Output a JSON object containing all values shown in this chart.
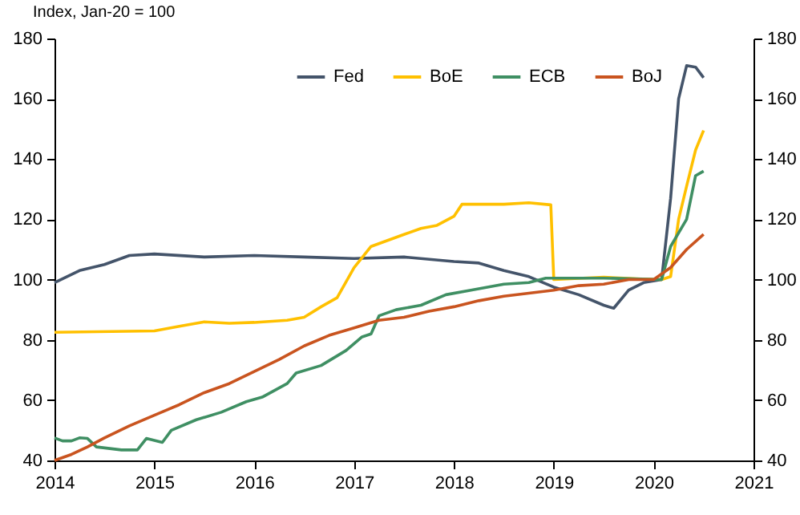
{
  "chart_data": {
    "type": "line",
    "ylabel": "Index, Jan-20 = 100",
    "xlim": [
      2014,
      2021
    ],
    "xticks": [
      2014,
      2015,
      2016,
      2017,
      2018,
      2019,
      2020,
      2021
    ],
    "ylim": [
      40,
      180
    ],
    "yticks": [
      40,
      60,
      80,
      100,
      120,
      140,
      160,
      180
    ],
    "y2lim": [
      40,
      180
    ],
    "y2ticks": [
      40,
      60,
      80,
      100,
      120,
      140,
      160,
      180
    ],
    "legend": "top",
    "grid": false,
    "marker": "none",
    "line_style": "solid",
    "series": [
      {
        "name": "Fed",
        "color": "#44546a",
        "x": [
          2014,
          2014.25,
          2014.5,
          2014.75,
          2015,
          2015.5,
          2016,
          2016.5,
          2017,
          2017.5,
          2018,
          2018.25,
          2018.5,
          2018.75,
          2019,
          2019.25,
          2019.5,
          2019.6,
          2019.75,
          2019.9,
          2020.08,
          2020.17,
          2020.25,
          2020.33,
          2020.42,
          2020.5
        ],
        "values": [
          99,
          103,
          105,
          108,
          108.5,
          107.5,
          108,
          107.5,
          107,
          107.5,
          106,
          105.5,
          103,
          101,
          97.5,
          95,
          91.5,
          90.5,
          96.5,
          99,
          100,
          127,
          160,
          171,
          170.5,
          167
        ]
      },
      {
        "name": "BoE",
        "color": "#ffc000",
        "x": [
          2014,
          2015,
          2015.25,
          2015.5,
          2015.75,
          2016,
          2016.33,
          2016.5,
          2016.67,
          2016.83,
          2017,
          2017.17,
          2017.5,
          2017.67,
          2017.83,
          2018,
          2018.08,
          2018.5,
          2018.75,
          2018.97,
          2019,
          2019.5,
          2019.83,
          2020.08,
          2020.17,
          2020.25,
          2020.33,
          2020.42,
          2020.5
        ],
        "values": [
          82.5,
          83,
          84.5,
          86,
          85.5,
          85.8,
          86.5,
          87.5,
          91,
          94,
          104,
          111,
          115,
          117,
          118,
          121,
          125,
          125,
          125.5,
          124.8,
          100,
          100.8,
          100.3,
          100,
          101,
          120,
          131,
          143,
          149.5
        ]
      },
      {
        "name": "ECB",
        "color": "#3f8f63",
        "x": [
          2014,
          2014.08,
          2014.17,
          2014.25,
          2014.33,
          2014.42,
          2014.67,
          2014.83,
          2014.92,
          2015.08,
          2015.17,
          2015.42,
          2015.67,
          2015.92,
          2016.08,
          2016.33,
          2016.42,
          2016.67,
          2016.92,
          2017.08,
          2017.17,
          2017.25,
          2017.42,
          2017.67,
          2017.92,
          2018.17,
          2018.5,
          2018.75,
          2018.92,
          2019.5,
          2020.08,
          2020.17,
          2020.33,
          2020.42,
          2020.5
        ],
        "values": [
          47.5,
          46.5,
          46.5,
          47.5,
          47.3,
          44.5,
          43.5,
          43.5,
          47.3,
          46,
          50,
          53.5,
          56,
          59.5,
          61,
          65.5,
          69,
          71.5,
          76.5,
          81,
          82,
          88,
          90,
          91.5,
          95,
          96.5,
          98.5,
          99,
          100.5,
          100.5,
          100,
          111,
          120,
          134.5,
          136
        ]
      },
      {
        "name": "BoJ",
        "color": "#c9541f",
        "x": [
          2014,
          2014.17,
          2014.33,
          2014.5,
          2014.75,
          2015,
          2015.25,
          2015.5,
          2015.75,
          2016,
          2016.25,
          2016.5,
          2016.75,
          2017,
          2017.25,
          2017.5,
          2017.75,
          2018,
          2018.25,
          2018.5,
          2018.75,
          2019,
          2019.25,
          2019.5,
          2019.75,
          2020,
          2020.17,
          2020.33,
          2020.5
        ],
        "values": [
          40,
          42,
          44.5,
          47.5,
          51.5,
          55,
          58.5,
          62.5,
          65.5,
          69.5,
          73.5,
          78,
          81.5,
          84,
          86.5,
          87.5,
          89.5,
          91,
          93,
          94.5,
          95.5,
          96.5,
          98,
          98.5,
          100,
          100,
          104,
          110,
          115
        ]
      }
    ]
  }
}
